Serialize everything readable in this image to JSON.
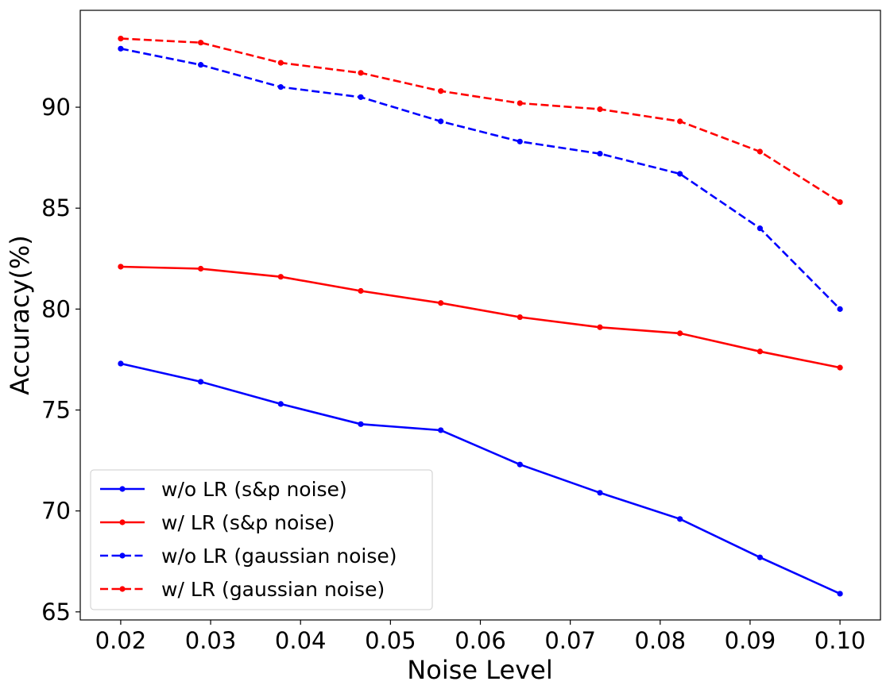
{
  "chart_data": {
    "type": "line",
    "xlabel": "Noise Level",
    "ylabel": "Accuracy(%)",
    "xlim": [
      0.0155,
      0.1045
    ],
    "ylim": [
      64.6,
      94.8
    ],
    "x": [
      0.02,
      0.0289,
      0.0378,
      0.0467,
      0.0556,
      0.0644,
      0.0733,
      0.0822,
      0.0911,
      0.1
    ],
    "xticks": [
      0.02,
      0.03,
      0.04,
      0.05,
      0.06,
      0.07,
      0.08,
      0.09,
      0.1
    ],
    "xtick_labels": [
      "0.02",
      "0.03",
      "0.04",
      "0.05",
      "0.06",
      "0.07",
      "0.08",
      "0.09",
      "0.10"
    ],
    "yticks": [
      65,
      70,
      75,
      80,
      85,
      90
    ],
    "ytick_labels": [
      "65",
      "70",
      "75",
      "80",
      "85",
      "90"
    ],
    "grid": false,
    "legend_position": "lower-left",
    "series": [
      {
        "name": "w/o LR (s&p noise)",
        "color": "#0000ff",
        "linestyle": "solid",
        "values": [
          77.3,
          76.4,
          75.3,
          74.3,
          74.0,
          72.3,
          70.9,
          69.6,
          67.7,
          65.9
        ]
      },
      {
        "name": "w/ LR (s&p noise)",
        "color": "#ff0000",
        "linestyle": "solid",
        "values": [
          82.1,
          82.0,
          81.6,
          80.9,
          80.3,
          79.6,
          79.1,
          78.8,
          77.9,
          77.1
        ]
      },
      {
        "name": "w/o LR (gaussian noise)",
        "color": "#0000ff",
        "linestyle": "dashed",
        "values": [
          92.9,
          92.1,
          91.0,
          90.5,
          89.3,
          88.3,
          87.7,
          86.7,
          84.0,
          80.0
        ]
      },
      {
        "name": "w/ LR (gaussian noise)",
        "color": "#ff0000",
        "linestyle": "dashed",
        "values": [
          93.4,
          93.2,
          92.2,
          91.7,
          90.8,
          90.2,
          89.9,
          89.3,
          87.8,
          85.3
        ]
      }
    ]
  }
}
